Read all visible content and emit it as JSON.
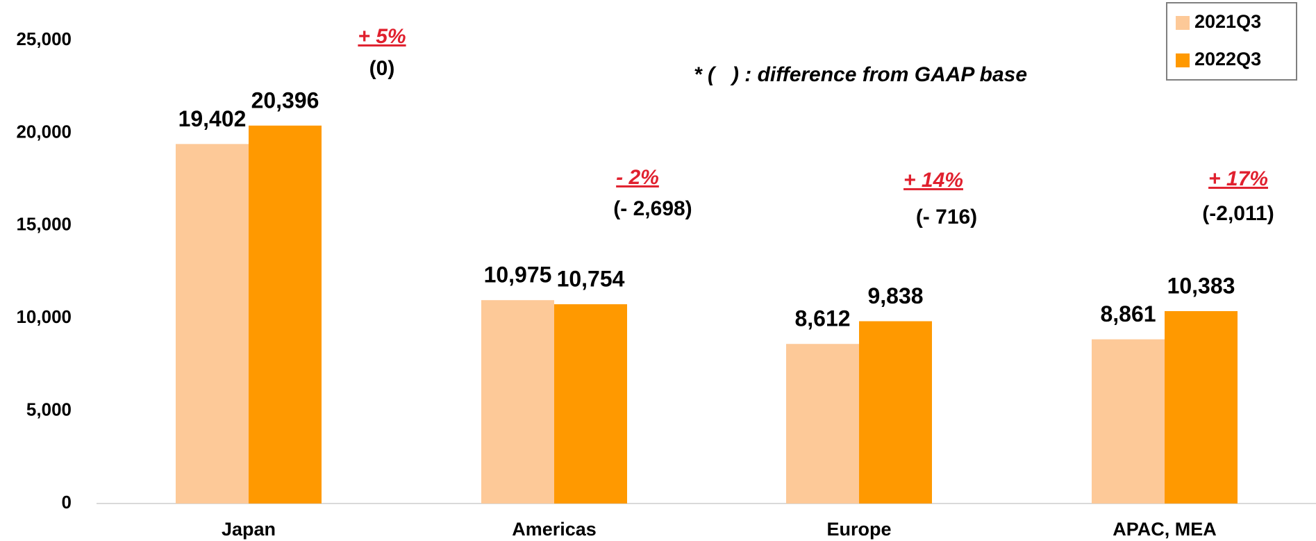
{
  "chart_data": {
    "type": "bar",
    "categories": [
      "Japan",
      "Americas",
      "Europe",
      "APAC, MEA"
    ],
    "series": [
      {
        "name": "2021Q3",
        "color": "#fdc998",
        "values": [
          19402,
          10975,
          8612,
          8861
        ],
        "value_labels": [
          "19,402",
          "10,975",
          "8,612",
          "8,861"
        ]
      },
      {
        "name": "2022Q3",
        "color": "#ff9900",
        "values": [
          20396,
          10754,
          9838,
          10383
        ],
        "value_labels": [
          "20,396",
          "10,754",
          "9,838",
          "10,383"
        ]
      }
    ],
    "ylim": [
      0,
      25000
    ],
    "yticks": [
      0,
      {
        "value": 5000,
        "label": "5,000"
      },
      {
        "value": 10000,
        "label": "10,000"
      },
      {
        "value": 15000,
        "label": "15,000"
      },
      {
        "value": 20000,
        "label": "20,000"
      },
      {
        "value": 25000,
        "label": "25,000"
      }
    ],
    "growth_labels": [
      "+ 5%",
      "- 2%",
      "+ 14%",
      "+ 17%"
    ],
    "gaap_diff_labels": [
      "(0)",
      "(- 2,698)",
      "(- 716)",
      "(-2,011)"
    ],
    "note": "* (   ) : difference from GAAP base",
    "legend": "upper right",
    "grid": false
  }
}
